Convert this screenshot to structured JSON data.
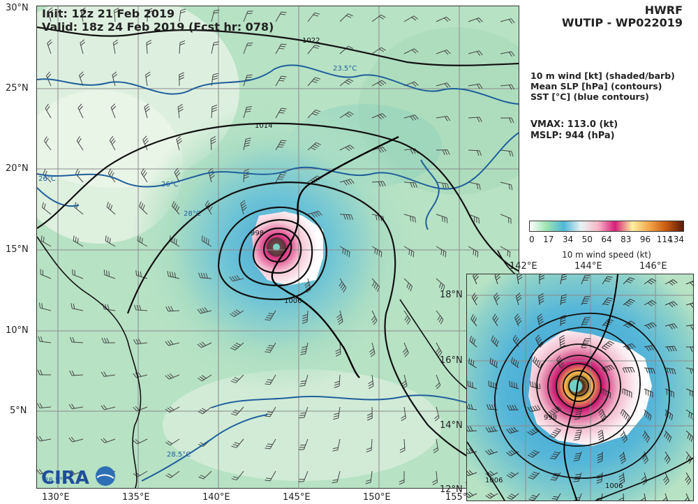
{
  "header": {
    "init_line": "Init:   12z 21 Feb 2019",
    "valid_line": "Valid: 18z 24 Feb 2019 (Fcst hr: 078)",
    "model": "HWRF",
    "storm": "WUTIP - WP022019"
  },
  "legend_text": {
    "line1": "10 m wind [kt] (shaded/barb)",
    "line2": "Mean SLP [hPa] (contours)",
    "line3": "SST [°C] (blue contours)",
    "vmax": "VMAX: 113.0 (kt)",
    "mslp": "MSLP:  944 (hPa)"
  },
  "colorbar": {
    "label": "10 m wind speed (kt)",
    "ticks": [
      "0",
      "17",
      "34",
      "50",
      "64",
      "83",
      "96",
      "114",
      "134"
    ],
    "stops": [
      "#ffffff",
      "#9be3b0",
      "#4fb7d8",
      "#e8f4f4",
      "#f7b8c8",
      "#d61f7a",
      "#fdf0a0",
      "#f3a64a",
      "#c85a10",
      "#5a1a0a"
    ]
  },
  "main_map": {
    "lon_ticks": [
      "130°E",
      "135°E",
      "140°E",
      "145°E",
      "150°E",
      "155°"
    ],
    "lat_ticks": [
      "30°N",
      "25°N",
      "20°N",
      "15°N",
      "10°N",
      "5°N"
    ],
    "slp_labels": [
      "1022",
      "1014",
      "1006",
      "998"
    ],
    "sst_labels": [
      "23.5°C",
      "26°C",
      "26°C",
      "28°C",
      "28.5°C",
      "28.5°C"
    ]
  },
  "inset_map": {
    "lon_ticks": [
      "142°E",
      "144°E",
      "146°E"
    ],
    "lat_ticks": [
      "18°N",
      "16°N",
      "14°N",
      "12°N"
    ],
    "slp_labels": [
      "998",
      "1006",
      "1006"
    ]
  },
  "logo": {
    "text": "CIRA"
  }
}
